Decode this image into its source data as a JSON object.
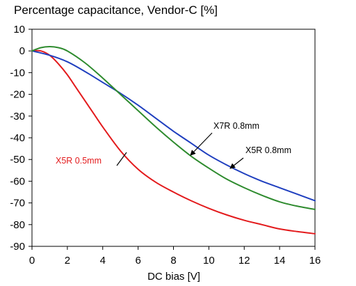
{
  "chart_data": {
    "type": "line",
    "title": "Percentage capacitance, Vendor-C [%]",
    "xlabel": "DC bias [V]",
    "ylabel": "",
    "xlim": [
      0,
      16
    ],
    "ylim": [
      -90,
      10
    ],
    "xticks": [
      "0",
      "2",
      "4",
      "6",
      "8",
      "10",
      "12",
      "14",
      "16"
    ],
    "yticks": [
      "10",
      "0",
      "-10",
      "-20",
      "-30",
      "-40",
      "-50",
      "-60",
      "-70",
      "-80",
      "-90"
    ],
    "grid": false,
    "series": [
      {
        "name": "X5R 0.5mm",
        "color": "#e31a1c",
        "x": [
          0,
          0.5,
          1,
          1.5,
          2,
          2.5,
          3,
          3.5,
          4,
          5,
          6,
          7,
          8,
          9,
          10,
          11,
          12,
          13,
          14,
          15,
          16
        ],
        "y": [
          0,
          0,
          -2,
          -6,
          -11,
          -17,
          -23,
          -29,
          -35,
          -46,
          -54.5,
          -60.5,
          -65,
          -69,
          -72.5,
          -75.5,
          -78,
          -80,
          -82,
          -83.2,
          -84.2
        ]
      },
      {
        "name": "X7R 0.8mm",
        "color": "#1f3fbf",
        "x": [
          0,
          1,
          2,
          3,
          4,
          5,
          6,
          7,
          8,
          9,
          10,
          11,
          12,
          13,
          14,
          15,
          16
        ],
        "y": [
          0,
          -2,
          -5,
          -9.5,
          -14.5,
          -19.5,
          -25,
          -31,
          -37,
          -42.5,
          -48,
          -52.5,
          -56.5,
          -60,
          -63,
          -66,
          -69
        ]
      },
      {
        "name": "X5R 0.8mm",
        "color": "#2e8b2e",
        "x": [
          0,
          0.5,
          1,
          1.5,
          2,
          3,
          4,
          5,
          6,
          7,
          8,
          9,
          10,
          11,
          12,
          13,
          14,
          15,
          16
        ],
        "y": [
          0,
          1.5,
          2,
          1.5,
          0,
          -5.5,
          -12.5,
          -20,
          -27.5,
          -35,
          -42,
          -48.5,
          -54,
          -59,
          -63,
          -66.5,
          -69.5,
          -71.5,
          -73
        ]
      }
    ],
    "annotations": [
      {
        "text": "X5R 0.5mm",
        "color": "#e31a1c"
      },
      {
        "text": "X7R 0.8mm",
        "color": "#000000"
      },
      {
        "text": "X5R 0.8mm",
        "color": "#000000"
      }
    ]
  }
}
